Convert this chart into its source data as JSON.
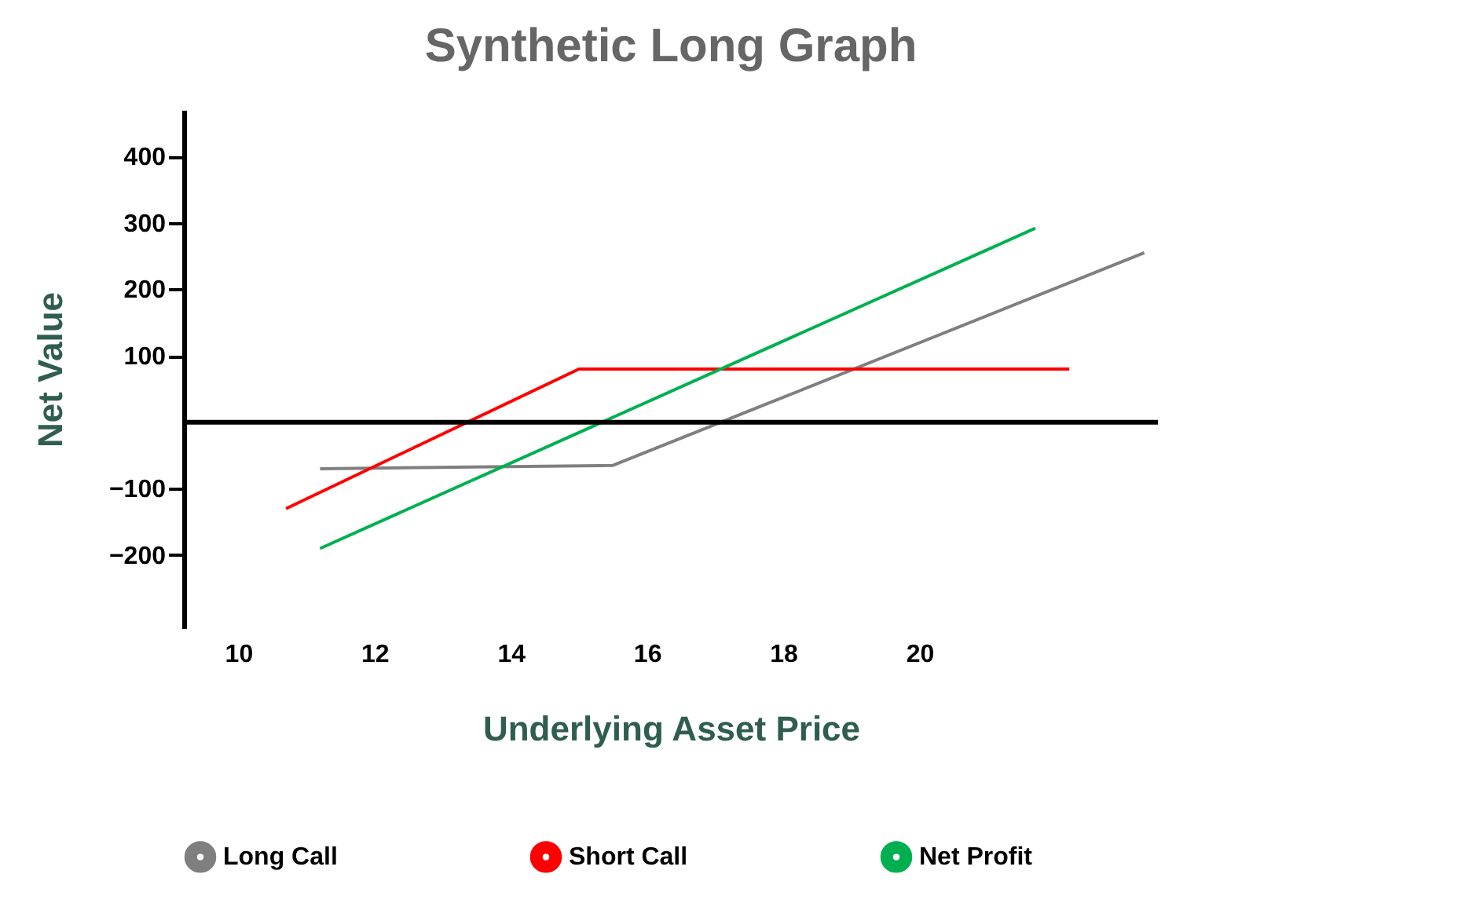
{
  "chart_data": {
    "type": "line",
    "title": "Synthetic Long Graph",
    "xlabel": "Underlying Asset Price",
    "ylabel": "Net Value",
    "xlim": [
      9.2,
      23.5
    ],
    "xticks": [
      10,
      12,
      14,
      16,
      18,
      20
    ],
    "ylim": [
      -310,
      470
    ],
    "yticks": [
      -200,
      -100,
      100,
      200,
      300,
      400
    ],
    "series": [
      {
        "name": "Long Call",
        "color": "#7f7f7f",
        "x": [
          11.2,
          15.5,
          23.3
        ],
        "values": [
          -70,
          -65,
          255
        ]
      },
      {
        "name": "Short Call",
        "color": "#ff0000",
        "x": [
          10.7,
          15.0,
          22.2
        ],
        "values": [
          -130,
          80,
          80
        ]
      },
      {
        "name": "Net Profit",
        "color": "#00b050",
        "x": [
          11.2,
          21.7
        ],
        "values": [
          -190,
          292
        ]
      }
    ],
    "ref_lines": [
      {
        "axis": "y",
        "value": 0,
        "color": "#000000"
      }
    ],
    "legend": "bottom",
    "grid": false,
    "marker": "none",
    "line_style": "solid"
  }
}
